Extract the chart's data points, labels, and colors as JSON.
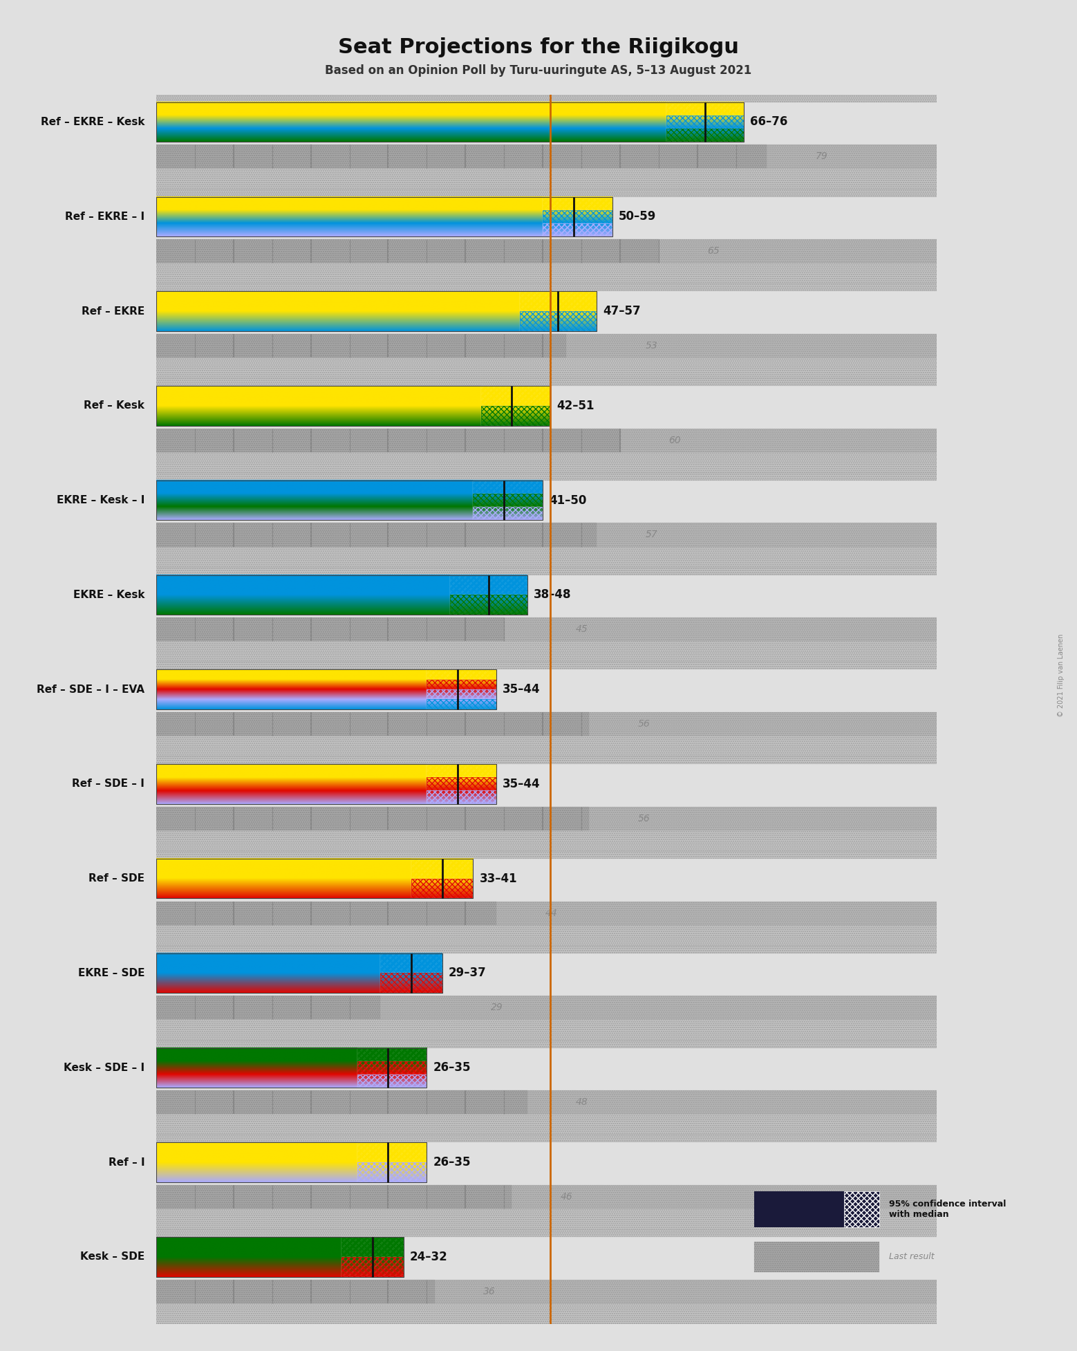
{
  "title": "Seat Projections for the Riigikogu",
  "subtitle": "Based on an Opinion Poll by Turu-uuringute AS, 5–13 August 2021",
  "copyright": "© 2021 Filip van Laenen",
  "majority_line": 51,
  "xmax": 101,
  "background_color": "#e0e0e0",
  "coalitions": [
    {
      "name": "Ref – EKRE – Kesk",
      "underline": false,
      "ci_low": 66,
      "ci_high": 76,
      "median": 71,
      "last_result": 79,
      "parties": [
        {
          "name": "Ref",
          "color": "#FFE400"
        },
        {
          "name": "EKRE",
          "color": "#0093DD"
        },
        {
          "name": "Kesk",
          "color": "#007700"
        }
      ]
    },
    {
      "name": "Ref – EKRE – I",
      "underline": false,
      "ci_low": 50,
      "ci_high": 59,
      "median": 54,
      "last_result": 65,
      "parties": [
        {
          "name": "Ref",
          "color": "#FFE400"
        },
        {
          "name": "EKRE",
          "color": "#0093DD"
        },
        {
          "name": "I",
          "color": "#AAAAFF"
        }
      ]
    },
    {
      "name": "Ref – EKRE",
      "underline": false,
      "ci_low": 47,
      "ci_high": 57,
      "median": 52,
      "last_result": 53,
      "parties": [
        {
          "name": "Ref",
          "color": "#FFE400"
        },
        {
          "name": "EKRE",
          "color": "#0093DD"
        }
      ]
    },
    {
      "name": "Ref – Kesk",
      "underline": false,
      "ci_low": 42,
      "ci_high": 51,
      "median": 46,
      "last_result": 60,
      "parties": [
        {
          "name": "Ref",
          "color": "#FFE400"
        },
        {
          "name": "Kesk",
          "color": "#007700"
        }
      ]
    },
    {
      "name": "EKRE – Kesk – I",
      "underline": true,
      "ci_low": 41,
      "ci_high": 50,
      "median": 45,
      "last_result": 57,
      "parties": [
        {
          "name": "EKRE",
          "color": "#0093DD"
        },
        {
          "name": "Kesk",
          "color": "#007700"
        },
        {
          "name": "I",
          "color": "#AAAAFF"
        }
      ]
    },
    {
      "name": "EKRE – Kesk",
      "underline": false,
      "ci_low": 38,
      "ci_high": 48,
      "median": 43,
      "last_result": 45,
      "parties": [
        {
          "name": "EKRE",
          "color": "#0093DD"
        },
        {
          "name": "Kesk",
          "color": "#007700"
        }
      ]
    },
    {
      "name": "Ref – SDE – I – EVA",
      "underline": false,
      "ci_low": 35,
      "ci_high": 44,
      "median": 39,
      "last_result": 56,
      "parties": [
        {
          "name": "Ref",
          "color": "#FFE400"
        },
        {
          "name": "SDE",
          "color": "#E10600"
        },
        {
          "name": "I",
          "color": "#AAAAFF"
        },
        {
          "name": "EVA",
          "color": "#0093DD"
        }
      ]
    },
    {
      "name": "Ref – SDE – I",
      "underline": false,
      "ci_low": 35,
      "ci_high": 44,
      "median": 39,
      "last_result": 56,
      "parties": [
        {
          "name": "Ref",
          "color": "#FFE400"
        },
        {
          "name": "SDE",
          "color": "#E10600"
        },
        {
          "name": "I",
          "color": "#AAAAFF"
        }
      ]
    },
    {
      "name": "Ref – SDE",
      "underline": false,
      "ci_low": 33,
      "ci_high": 41,
      "median": 37,
      "last_result": 44,
      "parties": [
        {
          "name": "Ref",
          "color": "#FFE400"
        },
        {
          "name": "SDE",
          "color": "#E10600"
        }
      ]
    },
    {
      "name": "EKRE – SDE",
      "underline": false,
      "ci_low": 29,
      "ci_high": 37,
      "median": 33,
      "last_result": 29,
      "parties": [
        {
          "name": "EKRE",
          "color": "#0093DD"
        },
        {
          "name": "SDE",
          "color": "#E10600"
        }
      ]
    },
    {
      "name": "Kesk – SDE – I",
      "underline": false,
      "ci_low": 26,
      "ci_high": 35,
      "median": 30,
      "last_result": 48,
      "parties": [
        {
          "name": "Kesk",
          "color": "#007700"
        },
        {
          "name": "SDE",
          "color": "#E10600"
        },
        {
          "name": "I",
          "color": "#AAAAFF"
        }
      ]
    },
    {
      "name": "Ref – I",
      "underline": false,
      "ci_low": 26,
      "ci_high": 35,
      "median": 30,
      "last_result": 46,
      "parties": [
        {
          "name": "Ref",
          "color": "#FFE400"
        },
        {
          "name": "I",
          "color": "#AAAAFF"
        }
      ]
    },
    {
      "name": "Kesk – SDE",
      "underline": false,
      "ci_low": 24,
      "ci_high": 32,
      "median": 28,
      "last_result": 36,
      "parties": [
        {
          "name": "Kesk",
          "color": "#007700"
        },
        {
          "name": "SDE",
          "color": "#E10600"
        }
      ]
    }
  ]
}
